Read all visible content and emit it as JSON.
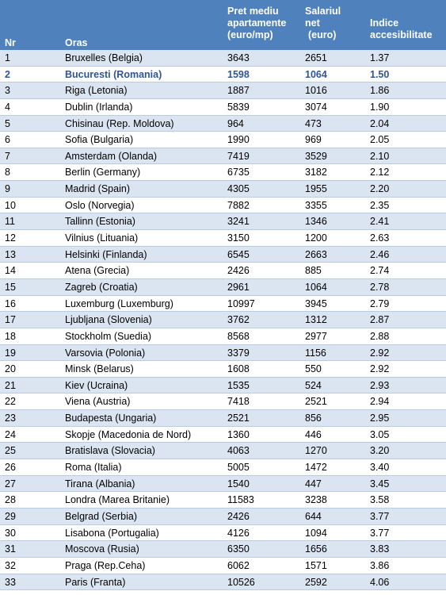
{
  "header": {
    "nr": "Nr",
    "oras": "Oras",
    "pret": [
      "Pret",
      "mediu",
      "apartamente",
      "(euro/mp)"
    ],
    "salariu": [
      "Salariul",
      "net",
      "(euro)"
    ],
    "indice": [
      "Indice",
      "accesibilitate"
    ]
  },
  "accent_color": "#4f81bd",
  "rows": [
    {
      "nr": "1",
      "oras": "Bruxelles (Belgia)",
      "pret": "3643",
      "salariu": "2651",
      "indice": "1.37"
    },
    {
      "nr": "2",
      "oras": "Bucuresti (Romania)",
      "pret": "1598",
      "salariu": "1064",
      "indice": "1.50",
      "highlight": true
    },
    {
      "nr": "3",
      "oras": "Riga (Letonia)",
      "pret": "1887",
      "salariu": "1016",
      "indice": "1.86"
    },
    {
      "nr": "4",
      "oras": "Dublin (Irlanda)",
      "pret": "5839",
      "salariu": "3074",
      "indice": "1.90"
    },
    {
      "nr": "5",
      "oras": "Chisinau (Rep. Moldova)",
      "pret": "964",
      "salariu": "473",
      "indice": "2.04"
    },
    {
      "nr": "6",
      "oras": "Sofia (Bulgaria)",
      "pret": "1990",
      "salariu": "969",
      "indice": "2.05"
    },
    {
      "nr": "7",
      "oras": "Amsterdam (Olanda)",
      "pret": "7419",
      "salariu": "3529",
      "indice": "2.10"
    },
    {
      "nr": "8",
      "oras": "Berlin (Germany)",
      "pret": "6735",
      "salariu": "3182",
      "indice": "2.12"
    },
    {
      "nr": "9",
      "oras": "Madrid (Spain)",
      "pret": "4305",
      "salariu": "1955",
      "indice": "2.20"
    },
    {
      "nr": "10",
      "oras": "Oslo (Norvegia)",
      "pret": "7882",
      "salariu": "3355",
      "indice": "2.35"
    },
    {
      "nr": "11",
      "oras": "Tallinn (Estonia)",
      "pret": "3241",
      "salariu": "1346",
      "indice": "2.41"
    },
    {
      "nr": "12",
      "oras": "Vilnius (Lituania)",
      "pret": "3150",
      "salariu": "1200",
      "indice": "2.63"
    },
    {
      "nr": "13",
      "oras": "Helsinki (Finlanda)",
      "pret": "6545",
      "salariu": "2663",
      "indice": "2.46"
    },
    {
      "nr": "14",
      "oras": "Atena (Grecia)",
      "pret": "2426",
      "salariu": "885",
      "indice": "2.74"
    },
    {
      "nr": "15",
      "oras": "Zagreb (Croatia)",
      "pret": "2961",
      "salariu": "1064",
      "indice": "2.78"
    },
    {
      "nr": "16",
      "oras": "Luxemburg (Luxemburg)",
      "pret": "10997",
      "salariu": "3945",
      "indice": "2.79"
    },
    {
      "nr": "17",
      "oras": "Ljubljana (Slovenia)",
      "pret": "3762",
      "salariu": "1312",
      "indice": "2.87"
    },
    {
      "nr": "18",
      "oras": "Stockholm (Suedia)",
      "pret": "8568",
      "salariu": "2977",
      "indice": "2.88"
    },
    {
      "nr": "19",
      "oras": "Varsovia (Polonia)",
      "pret": "3379",
      "salariu": "1156",
      "indice": "2.92"
    },
    {
      "nr": "20",
      "oras": "Minsk (Belarus)",
      "pret": "1608",
      "salariu": "550",
      "indice": "2.92"
    },
    {
      "nr": "21",
      "oras": "Kiev (Ucraina)",
      "pret": "1535",
      "salariu": "524",
      "indice": "2.93"
    },
    {
      "nr": "22",
      "oras": "Viena (Austria)",
      "pret": "7418",
      "salariu": "2521",
      "indice": "2.94"
    },
    {
      "nr": "23",
      "oras": "Budapesta (Ungaria)",
      "pret": "2521",
      "salariu": "856",
      "indice": "2.95"
    },
    {
      "nr": "24",
      "oras": "Skopje (Macedonia de Nord)",
      "pret": "1360",
      "salariu": "446",
      "indice": "3.05"
    },
    {
      "nr": "25",
      "oras": "Bratislava (Slovacia)",
      "pret": "4063",
      "salariu": "1270",
      "indice": "3.20"
    },
    {
      "nr": "26",
      "oras": "Roma (Italia)",
      "pret": "5005",
      "salariu": "1472",
      "indice": "3.40"
    },
    {
      "nr": "27",
      "oras": "Tirana (Albania)",
      "pret": "1540",
      "salariu": "447",
      "indice": "3.45"
    },
    {
      "nr": "28",
      "oras": "Londra (Marea Britanie)",
      "pret": "11583",
      "salariu": "3238",
      "indice": "3.58"
    },
    {
      "nr": "29",
      "oras": "Belgrad (Serbia)",
      "pret": "2426",
      "salariu": "644",
      "indice": "3.77"
    },
    {
      "nr": "30",
      "oras": "Lisabona (Portugalia)",
      "pret": "4126",
      "salariu": "1094",
      "indice": "3.77"
    },
    {
      "nr": "31",
      "oras": "Moscova (Rusia)",
      "pret": "6350",
      "salariu": "1656",
      "indice": "3.83"
    },
    {
      "nr": "32",
      "oras": "Praga (Rep.Ceha)",
      "pret": "6062",
      "salariu": "1571",
      "indice": "3.86"
    },
    {
      "nr": "33",
      "oras": "Paris (Franta)",
      "pret": "10526",
      "salariu": "2592",
      "indice": "4.06"
    }
  ]
}
